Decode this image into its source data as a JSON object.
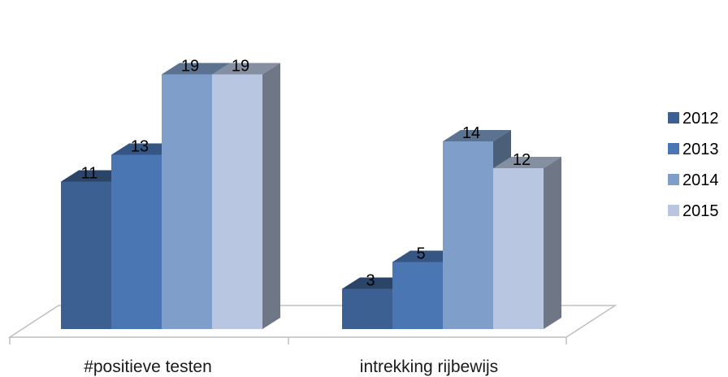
{
  "chart_data": {
    "type": "bar",
    "style": "3d-clustered-column",
    "categories": [
      "#positieve testen",
      "intrekking rijbewijs"
    ],
    "series": [
      {
        "name": "2012",
        "values": [
          11,
          3
        ],
        "color": "#3C6091"
      },
      {
        "name": "2013",
        "values": [
          13,
          5
        ],
        "color": "#4A77B4"
      },
      {
        "name": "2014",
        "values": [
          19,
          14
        ],
        "color": "#7F9ECA"
      },
      {
        "name": "2015",
        "values": [
          19,
          12
        ],
        "color": "#B9C6E1"
      }
    ],
    "data_labels": true,
    "ylim": [
      0,
      20
    ],
    "grid": false,
    "legend_position": "right",
    "title": "",
    "xlabel": "",
    "ylabel": ""
  }
}
